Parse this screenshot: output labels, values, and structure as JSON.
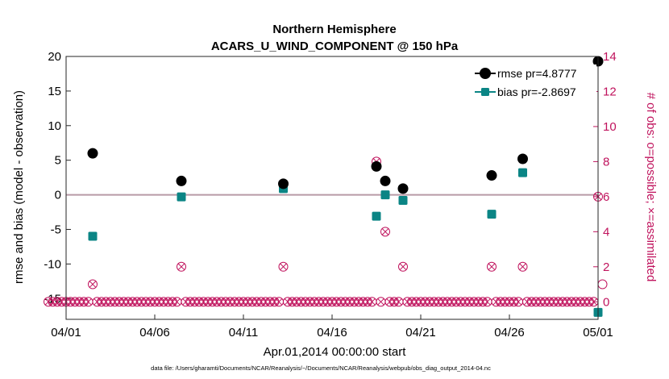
{
  "chart_data": {
    "type": "scatter",
    "title": "Northern Hemisphere",
    "subtitle": "ACARS_U_WIND_COMPONENT @ 150 hPa",
    "xlabel": "Apr.01,2014 00:00:00 start",
    "ylabel": "rmse and bias (model - observation)",
    "ylabel_right": "# of obs: o=possible; ×=assimilated",
    "ylim": [
      -18,
      20
    ],
    "ylim_right": [
      -1,
      14
    ],
    "xlim": [
      0,
      30
    ],
    "x_ticks": [
      0,
      5,
      10,
      15,
      20,
      25,
      30
    ],
    "x_tick_labels": [
      "04/01",
      "04/06",
      "04/11",
      "04/16",
      "04/21",
      "04/26",
      "05/01"
    ],
    "y_ticks": [
      -15,
      -10,
      -5,
      0,
      5,
      10,
      15,
      20
    ],
    "y_tick_labels": [
      "-15",
      "-10",
      "-5",
      "0",
      "5",
      "10",
      "15",
      "20"
    ],
    "y_ticks_right": [
      0,
      2,
      4,
      6,
      8,
      10,
      12,
      14
    ],
    "y_tick_labels_right": [
      "0",
      "2",
      "4",
      "6",
      "8",
      "10",
      "12",
      "14"
    ],
    "zero_line": 0,
    "series": [
      {
        "name": "rmse",
        "legend": "rmse pr=4.8777",
        "color": "#000000",
        "marker": "circle",
        "points": [
          [
            1.5,
            6.0
          ],
          [
            6.5,
            2.0
          ],
          [
            12.25,
            1.6
          ],
          [
            17.5,
            4.1
          ],
          [
            18.0,
            2.0
          ],
          [
            19.0,
            0.9
          ],
          [
            24.0,
            2.8
          ],
          [
            25.75,
            5.2
          ],
          [
            30.0,
            19.3
          ]
        ]
      },
      {
        "name": "bias",
        "legend": "bias pr=-2.8697",
        "color": "#0b8585",
        "marker": "square",
        "points": [
          [
            1.5,
            -6.0
          ],
          [
            6.5,
            -0.3
          ],
          [
            12.25,
            0.9
          ],
          [
            17.5,
            -3.1
          ],
          [
            18.0,
            0.0
          ],
          [
            19.0,
            -0.8
          ],
          [
            24.0,
            -2.8
          ],
          [
            25.75,
            3.2
          ],
          [
            30.0,
            -17.0
          ]
        ]
      },
      {
        "name": "obs possible",
        "color": "#c0135d",
        "marker": "circle-open",
        "nonzero_points": [
          [
            1.5,
            1
          ],
          [
            6.5,
            2
          ],
          [
            12.25,
            2
          ],
          [
            17.5,
            8
          ],
          [
            18.0,
            4
          ],
          [
            19.0,
            2
          ],
          [
            24.0,
            2
          ],
          [
            25.75,
            2
          ],
          [
            30.0,
            6
          ],
          [
            30.25,
            1
          ]
        ],
        "zero_x_range": [
          -1.0,
          30.0
        ],
        "zero_step": 0.25
      },
      {
        "name": "obs assimilated",
        "color": "#c0135d",
        "marker": "x",
        "nonzero_points": [
          [
            1.5,
            1
          ],
          [
            6.5,
            2
          ],
          [
            12.25,
            2
          ],
          [
            17.5,
            8
          ],
          [
            18.0,
            4
          ],
          [
            19.0,
            2
          ],
          [
            24.0,
            2
          ],
          [
            25.75,
            2
          ],
          [
            30.0,
            6
          ]
        ],
        "zero_x_range": [
          -1.0,
          29.75
        ],
        "zero_step": 0.25
      }
    ],
    "legend_position": "top-right",
    "footnote": "data file: /Users/gharamti/Documents/NCAR/Reanalysis/~/Documents/NCAR/Reanalysis/webpub/obs_diag_output_2014-04.nc"
  }
}
